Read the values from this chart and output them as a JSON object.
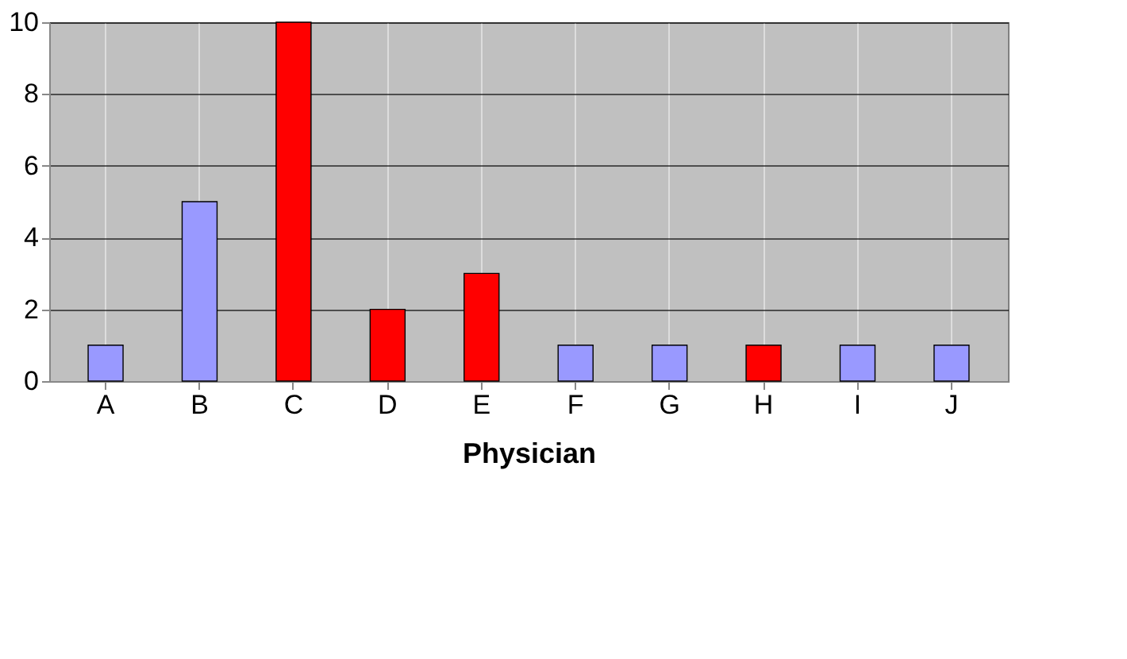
{
  "chart_data": {
    "type": "bar",
    "xlabel": "Physician",
    "categories": [
      "A",
      "B",
      "C",
      "D",
      "E",
      "F",
      "G",
      "H",
      "I",
      "J"
    ],
    "values": [
      1,
      5,
      10,
      2,
      3,
      1,
      1,
      1,
      1,
      1
    ],
    "colors": [
      "#9999ff",
      "#9999ff",
      "#ff0000",
      "#ff0000",
      "#ff0000",
      "#9999ff",
      "#9999ff",
      "#ff0000",
      "#9999ff",
      "#9999ff"
    ],
    "ylim": [
      0,
      10
    ],
    "yticks": [
      0,
      2,
      4,
      6,
      8,
      10
    ],
    "grid": true
  }
}
